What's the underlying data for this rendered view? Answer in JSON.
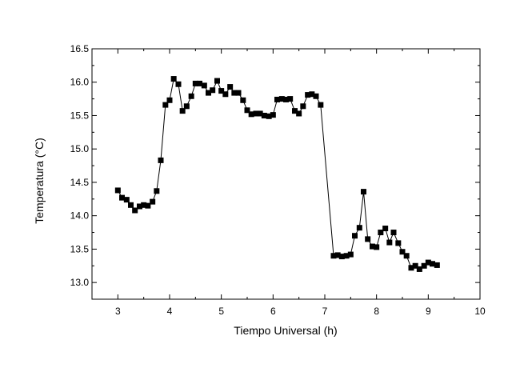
{
  "chart_data": {
    "type": "line",
    "xlabel": "Tiempo Universal (h)",
    "ylabel": "Temperatura (°C)",
    "xlim": [
      2.5,
      10
    ],
    "ylim": [
      12.75,
      16.5
    ],
    "x_ticks": [
      "3",
      "4",
      "5",
      "6",
      "7",
      "8",
      "9",
      "10"
    ],
    "y_ticks": [
      "13.0",
      "13.5",
      "14.0",
      "14.5",
      "15.0",
      "15.5",
      "16.0",
      "16.5"
    ],
    "grid": false,
    "legend": "none",
    "marker": "square",
    "color": "#000000",
    "series": [
      {
        "x": [
          3.0,
          3.08,
          3.17,
          3.25,
          3.33,
          3.42,
          3.5,
          3.58,
          3.67,
          3.75,
          3.83,
          3.92,
          4.0,
          4.08,
          4.17,
          4.25,
          4.33,
          4.42,
          4.5,
          4.58,
          4.67,
          4.75,
          4.83,
          4.92,
          5.0,
          5.08,
          5.17,
          5.25,
          5.33,
          5.42,
          5.5,
          5.58,
          5.67,
          5.75,
          5.83,
          5.92,
          6.0,
          6.08,
          6.17,
          6.25,
          6.33,
          6.42,
          6.5,
          6.58,
          6.67,
          6.75,
          6.83,
          6.92,
          7.17,
          7.25,
          7.33,
          7.42,
          7.5,
          7.58,
          7.67,
          7.75,
          7.83,
          7.92,
          8.0,
          8.08,
          8.17,
          8.25,
          8.33,
          8.42,
          8.5,
          8.58,
          8.67,
          8.75,
          8.83,
          8.92,
          9.0,
          9.08,
          9.17
        ],
        "y": [
          14.38,
          14.27,
          14.24,
          14.16,
          14.08,
          14.14,
          14.16,
          14.15,
          14.21,
          14.37,
          14.83,
          15.66,
          15.73,
          16.05,
          15.97,
          15.57,
          15.64,
          15.79,
          15.98,
          15.98,
          15.95,
          15.84,
          15.88,
          16.02,
          15.87,
          15.82,
          15.93,
          15.84,
          15.84,
          15.73,
          15.58,
          15.52,
          15.53,
          15.53,
          15.5,
          15.49,
          15.51,
          15.74,
          15.75,
          15.74,
          15.75,
          15.57,
          15.53,
          15.64,
          15.81,
          15.82,
          15.79,
          15.66,
          13.4,
          13.41,
          13.39,
          13.4,
          13.42,
          13.7,
          13.82,
          14.36,
          13.65,
          13.54,
          13.53,
          13.75,
          13.81,
          13.6,
          13.75,
          13.59,
          13.46,
          13.4,
          13.22,
          13.25,
          13.2,
          13.25,
          13.3,
          13.28,
          13.26
        ]
      }
    ]
  }
}
